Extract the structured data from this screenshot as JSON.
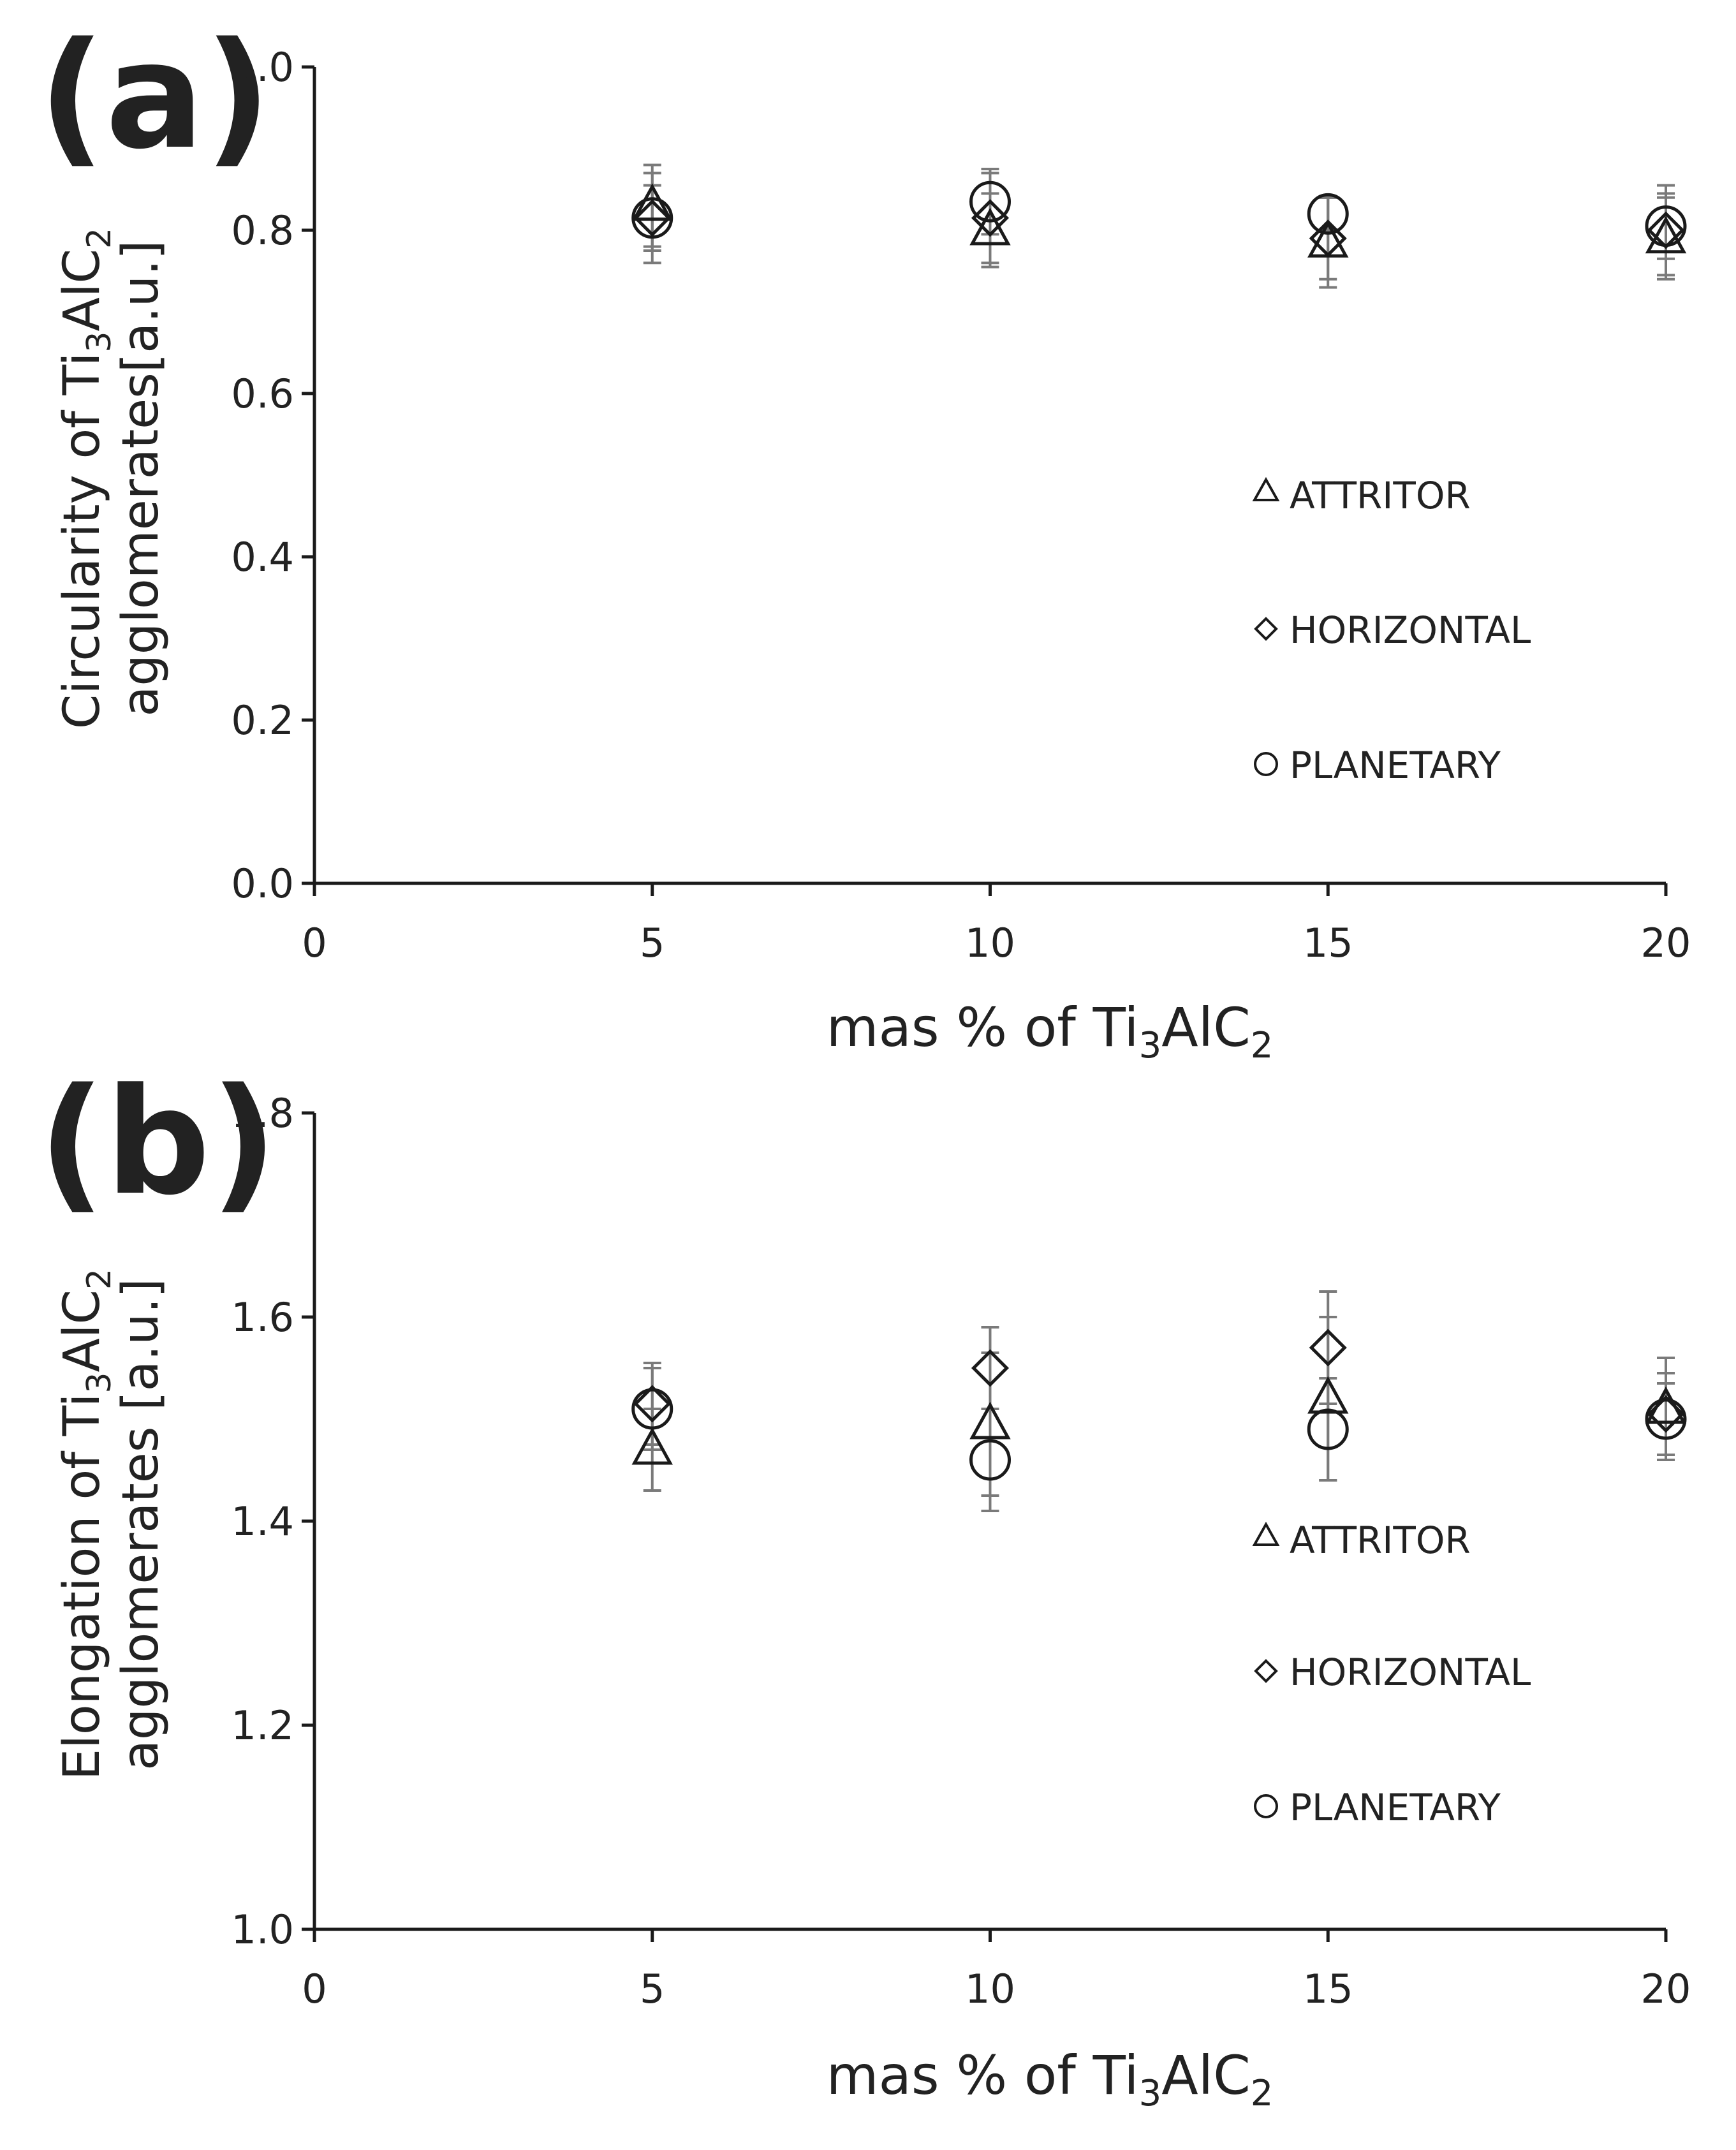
{
  "chart_data": [
    {
      "type": "scatter",
      "panel": "(a)",
      "xlabel": "mas % of Ti3AlC2",
      "xlabel_parts": [
        "mas % of Ti",
        "3",
        "AlC",
        "2"
      ],
      "ylabel_line1_parts": [
        "Circularity of Ti",
        "3",
        "AlC",
        "2"
      ],
      "ylabel_line2": "agglomerates[a.u.]",
      "xlim": [
        0,
        20
      ],
      "ylim": [
        0.0,
        1.0
      ],
      "xticks": [
        0,
        5,
        10,
        15,
        20
      ],
      "xtick_labels": [
        "0",
        "5",
        "10",
        "15",
        "20"
      ],
      "yticks": [
        0.0,
        0.2,
        0.4,
        0.6,
        0.8,
        1.0
      ],
      "ytick_labels": [
        "0.0",
        "0.2",
        "0.4",
        "0.6",
        "0.8",
        "1.0"
      ],
      "grid": false,
      "legend_position": "right",
      "series": [
        {
          "name": "ATTRITOR",
          "marker": "triangle",
          "x": [
            5,
            10,
            15,
            20
          ],
          "y": [
            0.83,
            0.8,
            0.785,
            0.79
          ],
          "err": [
            0.05,
            0.045,
            0.055,
            0.05
          ]
        },
        {
          "name": "HORIZONTAL",
          "marker": "diamond",
          "x": [
            5,
            10,
            15,
            20
          ],
          "y": [
            0.815,
            0.815,
            0.79,
            0.8
          ],
          "err": [
            0.055,
            0.055,
            0.05,
            0.055
          ]
        },
        {
          "name": "PLANETARY",
          "marker": "circle",
          "x": [
            5,
            10,
            15,
            20
          ],
          "y": [
            0.815,
            0.835,
            0.82,
            0.805
          ],
          "err": [
            0.04,
            0.04,
            0.02,
            0.04
          ]
        }
      ]
    },
    {
      "type": "scatter",
      "panel": "(b)",
      "xlabel": "mas % of Ti3AlC2",
      "xlabel_parts": [
        "mas % of Ti",
        "3",
        "AlC",
        "2"
      ],
      "ylabel_line1_parts": [
        "Elongation of Ti",
        "3",
        "AlC",
        "2"
      ],
      "ylabel_line2": "agglomerates [a.u.]",
      "xlim": [
        0,
        20
      ],
      "ylim": [
        1.0,
        1.8
      ],
      "xticks": [
        0,
        5,
        10,
        15,
        20
      ],
      "xtick_labels": [
        "0",
        "5",
        "10",
        "15",
        "20"
      ],
      "yticks": [
        1.0,
        1.2,
        1.4,
        1.6,
        1.8
      ],
      "ytick_labels": [
        "1.0",
        "1.2",
        "1.4",
        "1.6",
        "1.8"
      ],
      "grid": false,
      "legend_position": "right",
      "series": [
        {
          "name": "ATTRITOR",
          "marker": "triangle",
          "x": [
            5,
            10,
            15,
            20
          ],
          "y": [
            1.47,
            1.495,
            1.52,
            1.51
          ],
          "err": [
            0.04,
            0.07,
            0.08,
            0.05
          ]
        },
        {
          "name": "HORIZONTAL",
          "marker": "diamond",
          "x": [
            5,
            10,
            15,
            20
          ],
          "y": [
            1.515,
            1.55,
            1.57,
            1.505
          ],
          "err": [
            0.04,
            0.04,
            0.055,
            0.04
          ]
        },
        {
          "name": "PLANETARY",
          "marker": "circle",
          "x": [
            5,
            10,
            15,
            20
          ],
          "y": [
            1.51,
            1.46,
            1.49,
            1.5
          ],
          "err": [
            0.04,
            0.05,
            0.05,
            0.035
          ]
        }
      ]
    }
  ],
  "legend_labels": [
    "ATTRITOR",
    "HORIZONTAL",
    "PLANETARY"
  ],
  "colors": {
    "marker": "#1a1a1a",
    "axis": "#1a1a1a",
    "errorbar": "#7a7a7a"
  }
}
